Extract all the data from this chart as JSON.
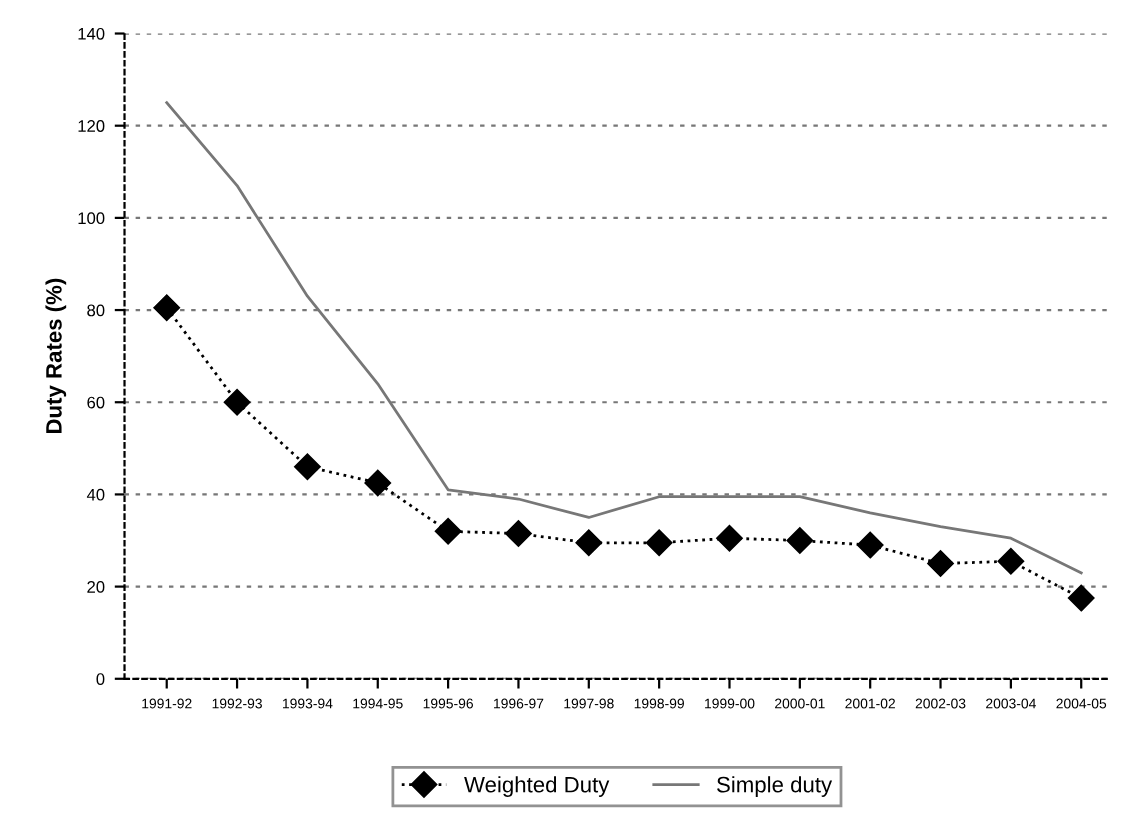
{
  "chart_data": {
    "type": "line",
    "ylabel": "Duty Rates (%)",
    "categories": [
      "1991-92",
      "1992-93",
      "1993-94",
      "1994-95",
      "1995-96",
      "1996-97",
      "1997-98",
      "1998-99",
      "1999-00",
      "2000-01",
      "2001-02",
      "2002-03",
      "2003-04",
      "2004-05"
    ],
    "series": [
      {
        "name": "Weighted Duty",
        "color": "#000000",
        "values": [
          80.5,
          60,
          46,
          42.5,
          32,
          31.5,
          29.5,
          29.5,
          30.5,
          30,
          29,
          25,
          25.5,
          17.5
        ],
        "marker": "diamond",
        "line_style": "dotted"
      },
      {
        "name": "Simple duty",
        "color": "#777777",
        "values": [
          125,
          107,
          83,
          64,
          41,
          39,
          35,
          39.5,
          39.5,
          39.5,
          36,
          33,
          30.5,
          23
        ],
        "marker": "none",
        "line_style": "solid"
      }
    ],
    "ylim": [
      0,
      140
    ],
    "yticks": [
      0,
      20,
      40,
      60,
      80,
      100,
      120,
      140
    ],
    "grid": "y",
    "legend": "bottom"
  }
}
